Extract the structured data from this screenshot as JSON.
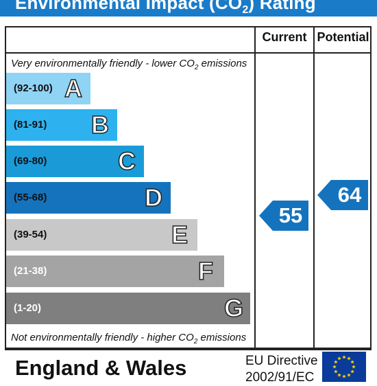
{
  "title_pre": "Environmental Impact (CO",
  "title_sub": "2",
  "title_post": ") Rating",
  "columns": {
    "current": "Current",
    "potential": "Potential"
  },
  "top_note_pre": "Very environmentally friendly - lower CO",
  "top_note_sub": "2",
  "top_note_post": " emissions",
  "bottom_note_pre": "Not environmentally friendly - higher CO",
  "bottom_note_sub": "2",
  "bottom_note_post": " emissions",
  "bands": [
    {
      "range": "(92-100)",
      "letter": "A",
      "color": "#8fd3f5"
    },
    {
      "range": "(81-91)",
      "letter": "B",
      "color": "#2db2ef"
    },
    {
      "range": "(69-80)",
      "letter": "C",
      "color": "#1a9bd8"
    },
    {
      "range": "(55-68)",
      "letter": "D",
      "color": "#1573bd"
    },
    {
      "range": "(39-54)",
      "letter": "E",
      "color": "#c8c8c8"
    },
    {
      "range": "(21-38)",
      "letter": "F",
      "color": "#a4a4a4"
    },
    {
      "range": "(1-20)",
      "letter": "G",
      "color": "#7f7f7f"
    }
  ],
  "current_rating": "55",
  "potential_rating": "64",
  "rating_color": "#1573bd",
  "footer": {
    "region": "England & Wales",
    "directive_line1": "EU Directive",
    "directive_line2": "2002/91/EC"
  },
  "flag_icon": "eu-flag-icon"
}
